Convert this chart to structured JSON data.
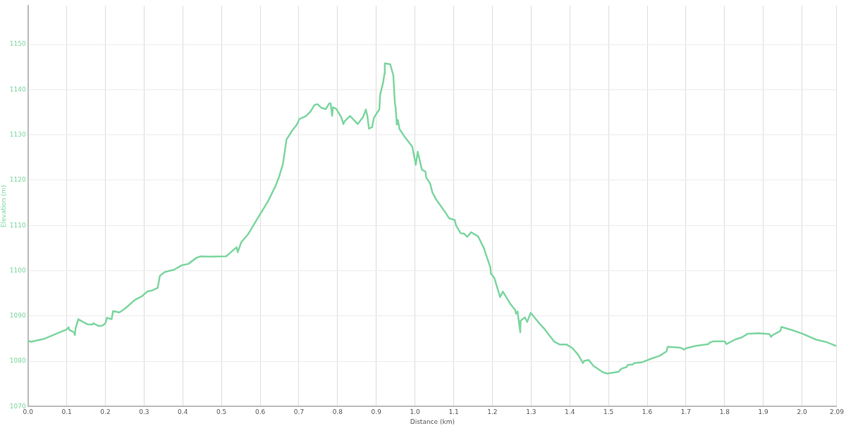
{
  "chart_data": {
    "type": "line",
    "xlabel": "Distance (km)",
    "ylabel": "Elevation (m)",
    "xlim": [
      0,
      2.09
    ],
    "ylim": [
      1070,
      1158.5
    ],
    "xticks": [
      {
        "value": 0,
        "label": "0.0"
      },
      0.1,
      0.2,
      0.3,
      0.4,
      0.5,
      0.6,
      0.7,
      0.8,
      0.9,
      {
        "value": 1,
        "label": "1.0"
      },
      1.1,
      1.2,
      1.3,
      1.4,
      1.5,
      1.6,
      1.7,
      1.8,
      1.9,
      {
        "value": 2,
        "label": "2.0"
      },
      2.09
    ],
    "yticks": [
      1070,
      1080,
      1090,
      1100,
      1110,
      1120,
      1130,
      1140,
      1150
    ],
    "grid": true,
    "legend": false,
    "marker": "none",
    "line_style": "solid",
    "series": [
      {
        "color": "#7dd6a0",
        "x": [
          0,
          0.007,
          0.043,
          0.088,
          0.099,
          0.105,
          0.107,
          0.119,
          0.121,
          0.123,
          0.13,
          0.142,
          0.153,
          0.166,
          0.169,
          0.182,
          0.193,
          0.2,
          0.204,
          0.216,
          0.22,
          0.236,
          0.25,
          0.277,
          0.295,
          0.308,
          0.319,
          0.335,
          0.341,
          0.353,
          0.366,
          0.377,
          0.397,
          0.414,
          0.436,
          0.447,
          0.467,
          0.512,
          0.539,
          0.542,
          0.551,
          0.569,
          0.595,
          0.62,
          0.64,
          0.649,
          0.659,
          0.668,
          0.683,
          0.695,
          0.701,
          0.719,
          0.731,
          0.74,
          0.748,
          0.758,
          0.769,
          0.779,
          0.782,
          0.786,
          0.788,
          0.796,
          0.809,
          0.815,
          0.818,
          0.832,
          0.852,
          0.866,
          0.873,
          0.877,
          0.881,
          0.889,
          0.894,
          0.908,
          0.91,
          0.918,
          0.921,
          0.922,
          0.936,
          0.944,
          0.948,
          0.95,
          0.953,
          0.956,
          0.96,
          0.974,
          0.993,
          1.002,
          1.007,
          1.018,
          1.027,
          1.029,
          1.039,
          1.045,
          1.055,
          1.076,
          1.088,
          1.103,
          1.106,
          1.118,
          1.127,
          1.135,
          1.145,
          1.163,
          1.178,
          1.187,
          1.195,
          1.196,
          1.205,
          1.22,
          1.227,
          1.247,
          1.259,
          1.261,
          1.265,
          1.272,
          1.273,
          1.284,
          1.29,
          1.299,
          1.323,
          1.335,
          1.359,
          1.374,
          1.392,
          1.407,
          1.422,
          1.434,
          1.437,
          1.449,
          1.461,
          1.485,
          1.497,
          1.526,
          1.534,
          1.546,
          1.55,
          1.563,
          1.566,
          1.587,
          1.611,
          1.632,
          1.65,
          1.653,
          1.686,
          1.695,
          1.701,
          1.725,
          1.758,
          1.761,
          1.77,
          1.8,
          1.805,
          1.827,
          1.845,
          1.86,
          1.887,
          1.916,
          1.92,
          1.924,
          1.944,
          1.947,
          1.974,
          2.001,
          2.036,
          2.061,
          2.076,
          2.088
        ],
        "values": [
          1084.6,
          1084.3,
          1085.0,
          1086.6,
          1087.0,
          1087.5,
          1086.9,
          1086.4,
          1085.8,
          1087.3,
          1089.3,
          1088.7,
          1088.2,
          1088.1,
          1088.4,
          1087.8,
          1087.9,
          1088.4,
          1089.6,
          1089.3,
          1091.1,
          1090.8,
          1091.6,
          1093.6,
          1094.4,
          1095.4,
          1095.6,
          1096.2,
          1098.9,
          1099.7,
          1100.0,
          1100.2,
          1101.2,
          1101.5,
          1102.9,
          1103.2,
          1103.1,
          1103.2,
          1105.2,
          1104.1,
          1106.3,
          1108.1,
          1111.8,
          1115.3,
          1118.8,
          1120.8,
          1123.7,
          1129.0,
          1131.0,
          1132.3,
          1133.5,
          1134.2,
          1135.3,
          1136.6,
          1136.8,
          1136.0,
          1135.7,
          1137.0,
          1136.9,
          1134.2,
          1136.1,
          1135.8,
          1134.0,
          1132.4,
          1133.0,
          1134.2,
          1132.4,
          1134.0,
          1135.6,
          1134.2,
          1131.4,
          1131.7,
          1133.8,
          1135.7,
          1138.9,
          1141.7,
          1143.5,
          1145.8,
          1145.6,
          1143.2,
          1137.1,
          1136.1,
          1132.3,
          1133.3,
          1131.3,
          1129.5,
          1127.4,
          1123.4,
          1126.3,
          1122.3,
          1121.9,
          1120.6,
          1119.3,
          1117.3,
          1115.7,
          1113.2,
          1111.6,
          1111.2,
          1110.0,
          1108.3,
          1108.2,
          1107.5,
          1108.5,
          1107.6,
          1105.0,
          1102.7,
          1100.7,
          1099.4,
          1098.4,
          1094.2,
          1095.4,
          1092.6,
          1091.3,
          1090.5,
          1091.0,
          1086.4,
          1089.0,
          1089.7,
          1088.7,
          1090.7,
          1088.2,
          1087.1,
          1084.4,
          1083.7,
          1083.7,
          1082.9,
          1081.4,
          1079.6,
          1080.1,
          1080.3,
          1079.0,
          1077.6,
          1077.3,
          1077.7,
          1078.4,
          1078.7,
          1079.2,
          1079.3,
          1079.6,
          1079.8,
          1080.6,
          1081.2,
          1082.2,
          1083.2,
          1083.0,
          1082.6,
          1082.9,
          1083.4,
          1083.8,
          1084.1,
          1084.4,
          1084.4,
          1083.8,
          1084.8,
          1085.3,
          1086.1,
          1086.2,
          1086.0,
          1085.4,
          1085.8,
          1086.7,
          1087.6,
          1086.9,
          1086.1,
          1084.8,
          1084.3,
          1083.8,
          1083.4
        ]
      }
    ]
  }
}
